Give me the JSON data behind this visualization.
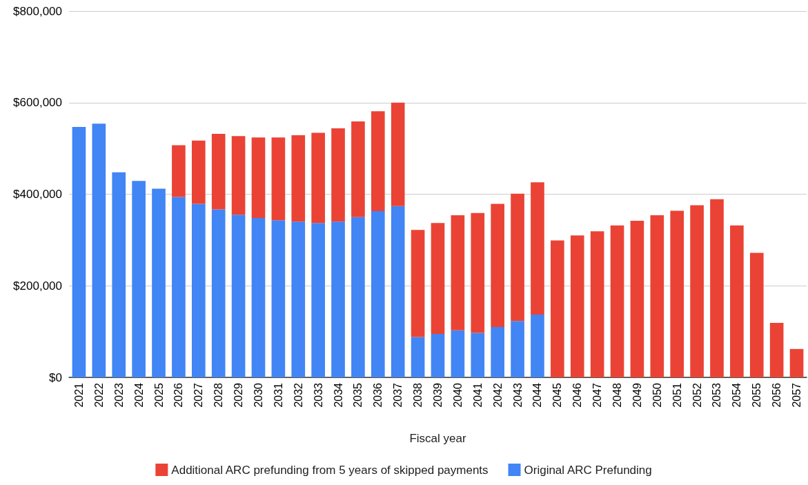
{
  "chart_data": {
    "type": "bar",
    "stacked": true,
    "xlabel": "Fiscal year",
    "legend": "bottom",
    "grid": "y",
    "categories": [
      "2021",
      "2022",
      "2023",
      "2024",
      "2025",
      "2026",
      "2027",
      "2028",
      "2029",
      "2030",
      "2031",
      "2032",
      "2033",
      "2034",
      "2035",
      "2036",
      "2037",
      "2038",
      "2039",
      "2040",
      "2041",
      "2042",
      "2043",
      "2044",
      "2045",
      "2046",
      "2047",
      "2048",
      "2049",
      "2050",
      "2051",
      "2052",
      "2053",
      "2054",
      "2055",
      "2056",
      "2057"
    ],
    "ylim": [
      0,
      800000
    ],
    "yticks": [
      {
        "value": 0,
        "label": "$0"
      },
      {
        "value": 200000,
        "label": "$200,000"
      },
      {
        "value": 400000,
        "label": "$400,000"
      },
      {
        "value": 600000,
        "label": "$600,000"
      },
      {
        "value": 800000,
        "label": "$800,000"
      }
    ],
    "series": [
      {
        "name": "Original ARC Prefunding",
        "color": "#4285f4",
        "values": [
          547000,
          554000,
          448000,
          429000,
          412000,
          394000,
          379000,
          367000,
          355000,
          348000,
          343000,
          340000,
          337000,
          340000,
          350000,
          363000,
          374000,
          88000,
          95000,
          103000,
          97000,
          110000,
          123000,
          137000,
          null,
          null,
          null,
          null,
          null,
          null,
          null,
          null,
          null,
          null,
          null,
          null,
          null
        ]
      },
      {
        "name": "Additional ARC prefunding from 5 years of skipped payments",
        "color": "#ea4335",
        "values": [
          null,
          null,
          null,
          null,
          null,
          113000,
          138000,
          165000,
          172000,
          176000,
          181000,
          189000,
          197000,
          204000,
          209000,
          218000,
          226000,
          234000,
          242000,
          251000,
          262000,
          269000,
          278000,
          289000,
          299000,
          310000,
          319000,
          332000,
          342000,
          354000,
          364000,
          376000,
          389000,
          332000,
          272000,
          119000,
          62000
        ]
      }
    ]
  }
}
